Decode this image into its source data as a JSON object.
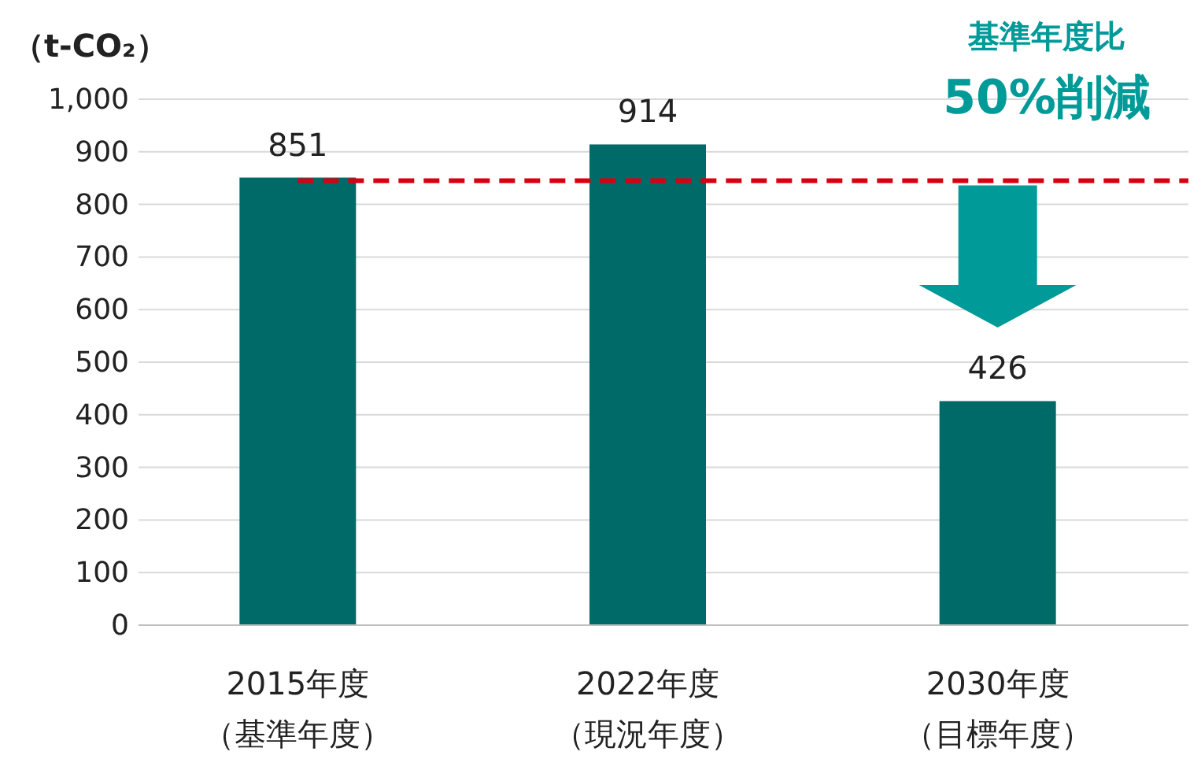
{
  "chart_data": {
    "type": "bar",
    "ylabel": "（t-CO₂）",
    "categories": [
      "2015年度（基準年度）",
      "2022年度（現況年度）",
      "2030年度（目標年度）"
    ],
    "values": [
      851,
      914,
      426
    ],
    "color": "#006a68",
    "ylim": [
      0,
      1000
    ],
    "yticks": [
      0,
      100,
      200,
      300,
      400,
      500,
      600,
      700,
      800,
      900,
      {
        "value": 1000,
        "label": "1,000"
      }
    ],
    "grid": "y",
    "data_labels": true,
    "ref_lines": [
      {
        "axis": "y",
        "value": 845,
        "color": "#d7000f",
        "line_style": "dashed"
      }
    ],
    "annotations": [
      "基準年度比",
      "50%削減"
    ]
  }
}
